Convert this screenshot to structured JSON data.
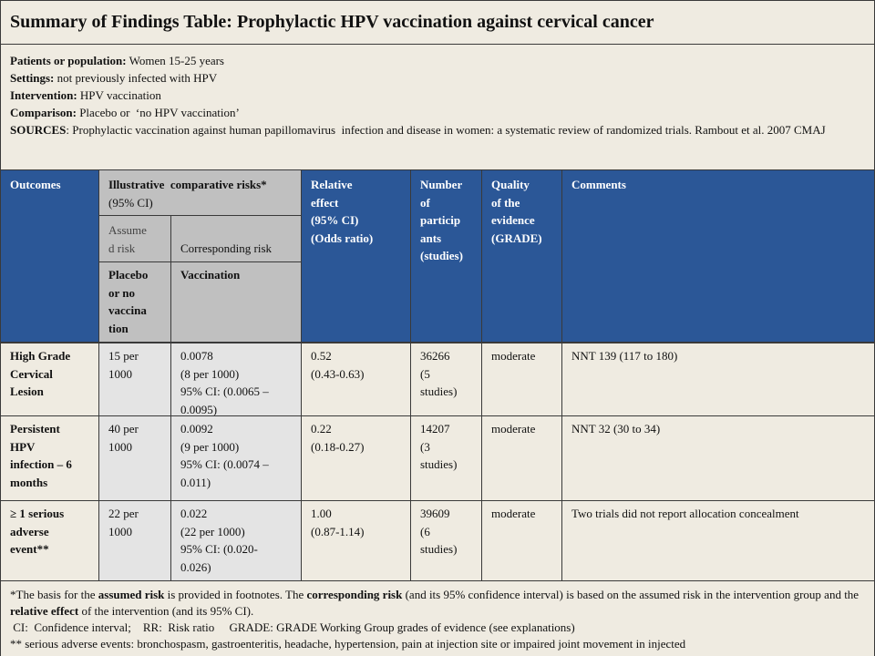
{
  "title": "Summary of Findings Table: Prophylactic HPV vaccination against cervical cancer",
  "population": [
    {
      "label": "Patients or population:",
      "text": "Women 15-25 years"
    },
    {
      "label": "Settings:",
      "text": "not previously infected with HPV"
    },
    {
      "label": "Intervention:",
      "text": "HPV vaccination"
    },
    {
      "label": "Comparison:",
      "text": "Placebo or  ‘no HPV vaccination’"
    },
    {
      "label": "SOURCES",
      "text": ": Prophylactic vaccination against human papillomavirus  infection and disease in women: a systematic review of randomized trials. Rambout et al. 2007 CMAJ"
    }
  ],
  "header": {
    "outcomes": "Outcomes",
    "illustrative": {
      "bold": "Illustrative  comparative risks*",
      "plain": "(95% CI)"
    },
    "relative": [
      "Relative",
      "effect",
      "(95% CI)",
      "(Odds ratio)"
    ],
    "participants": [
      "Number",
      "of",
      "particip",
      "ants",
      "(studies)"
    ],
    "quality": [
      "Quality",
      "of the",
      "evidence",
      "(GRADE)"
    ],
    "comments": "Comments",
    "assumed": [
      "Assume",
      "d risk"
    ],
    "corresponding": "Corresponding risk",
    "placebo": [
      "Placebo",
      "or no",
      "vaccina",
      "tion"
    ],
    "vaccination": "Vaccination"
  },
  "rows": [
    {
      "outcome": [
        "High Grade",
        "Cervical",
        "Lesion"
      ],
      "assumed": [
        "15 per",
        "1000"
      ],
      "corresponding": [
        "0.0078",
        "(8 per 1000)",
        "95% CI: (0.0065 –",
        "0.0095)"
      ],
      "relative": [
        "0.52",
        "(0.43-0.63)"
      ],
      "participants": [
        "36266",
        "(5",
        "studies)"
      ],
      "quality": "moderate",
      "comments": "NNT 139 (117 to 180)"
    },
    {
      "outcome": [
        "Persistent",
        "HPV",
        "infection – 6",
        "months"
      ],
      "assumed": [
        "40 per",
        "1000"
      ],
      "corresponding": [
        "0.0092",
        "(9 per 1000)",
        "95% CI: (0.0074 –",
        "0.011)"
      ],
      "relative": [
        "0.22",
        "(0.18-0.27)"
      ],
      "participants": [
        "14207",
        "(3",
        "studies)"
      ],
      "quality": "moderate",
      "comments": "NNT 32 (30 to 34)"
    },
    {
      "outcome": [
        "≥ 1 serious",
        "adverse",
        "event**"
      ],
      "assumed": [
        "22 per",
        "1000"
      ],
      "corresponding": [
        "0.022",
        "(22 per 1000)",
        "95% CI: (0.020-",
        "0.026)"
      ],
      "relative": [
        "1.00",
        "(0.87-1.14)"
      ],
      "participants": [
        "39609",
        "(6",
        "studies)"
      ],
      "quality": "moderate",
      "comments": "Two trials did not report allocation concealment"
    }
  ],
  "footnotes": [
    [
      {
        "text": "*The basis for the ",
        "bold": false
      },
      {
        "text": "assumed risk",
        "bold": true
      },
      {
        "text": " is provided in footnotes. The ",
        "bold": false
      },
      {
        "text": "corresponding risk",
        "bold": true
      },
      {
        "text": " (and its 95% confidence interval) is based on the assumed risk in the intervention group and the ",
        "bold": false
      },
      {
        "text": "relative effect",
        "bold": true
      },
      {
        "text": " of the intervention (and its 95% CI).",
        "bold": false
      }
    ],
    " CI:  Confidence interval;    RR:  Risk ratio     GRADE: GRADE Working Group grades of evidence (see explanations)",
    "** serious adverse events: bronchospasm, gastroenteritis, headache, hypertension, pain at injection site or impaired joint movement in injected"
  ]
}
